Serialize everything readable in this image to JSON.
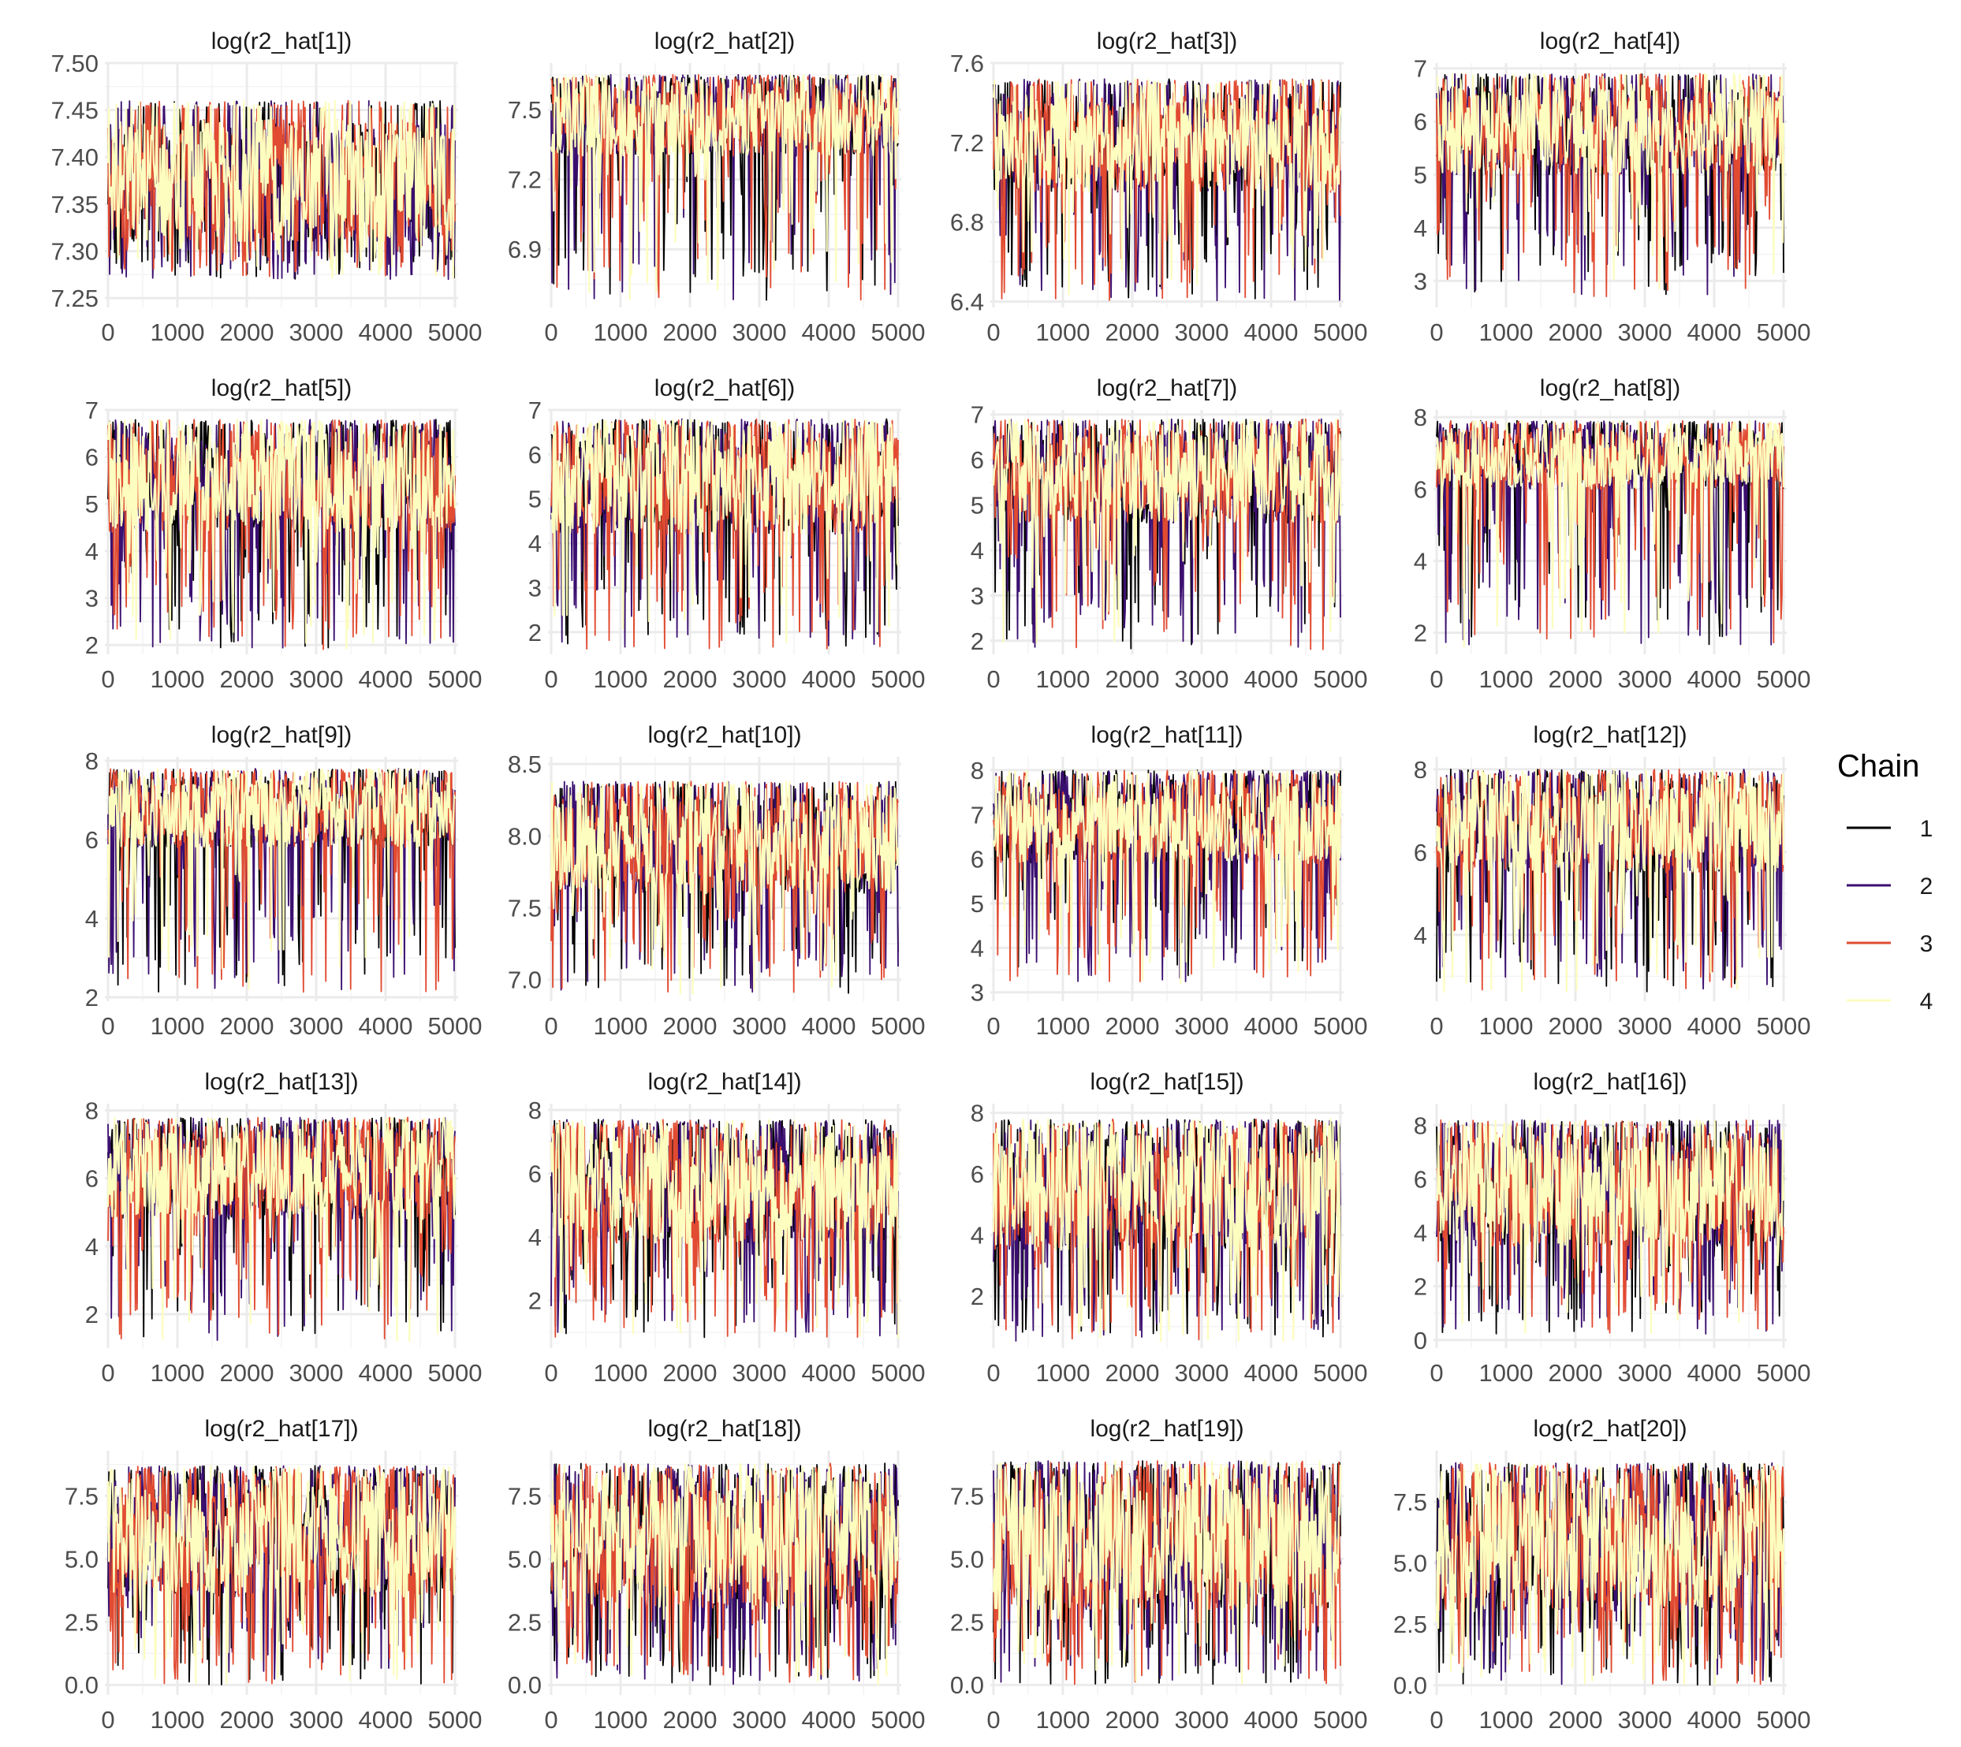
{
  "chart_data": {
    "type": "line",
    "grid": true,
    "legend": {
      "title": "Chain",
      "placement": "right",
      "entries": [
        {
          "name": "1",
          "color": "#000000"
        },
        {
          "name": "2",
          "color": "#3b0f70"
        },
        {
          "name": "3",
          "color": "#e14b31"
        },
        {
          "name": "4",
          "color": "#fcfdbf"
        }
      ]
    },
    "x_axis": {
      "range": [
        0,
        5000
      ],
      "ticks": [
        0,
        1000,
        2000,
        3000,
        4000,
        5000
      ],
      "labels": [
        "0",
        "1000",
        "2000",
        "3000",
        "4000",
        "5000"
      ]
    },
    "panels": [
      {
        "title": "log(r2_hat[1])",
        "ylim": [
          7.24,
          7.5
        ],
        "yticks": [
          7.25,
          7.3,
          7.35,
          7.4,
          7.45,
          7.5
        ],
        "ytick_labels": [
          "7.25",
          "7.30",
          "7.35",
          "7.40",
          "7.45",
          "7.50"
        ],
        "upper": 7.46,
        "band": [
          7.31,
          7.44
        ],
        "lower": 7.27
      },
      {
        "title": "log(r2_hat[2])",
        "ylim": [
          6.65,
          7.7
        ],
        "yticks": [
          6.9,
          7.2,
          7.5
        ],
        "ytick_labels": [
          "6.9",
          "7.2",
          "7.5"
        ],
        "upper": 7.65,
        "band": [
          7.3,
          7.62
        ],
        "lower": 6.68
      },
      {
        "title": "log(r2_hat[3])",
        "ylim": [
          6.37,
          7.6
        ],
        "yticks": [
          6.4,
          6.8,
          7.2,
          7.6
        ],
        "ytick_labels": [
          "6.4",
          "6.8",
          "7.2",
          "7.6"
        ],
        "upper": 7.52,
        "band": [
          6.95,
          7.45
        ],
        "lower": 6.4
      },
      {
        "title": "log(r2_hat[4])",
        "ylim": [
          2.5,
          7.1
        ],
        "yticks": [
          3,
          4,
          5,
          6,
          7
        ],
        "ytick_labels": [
          "3",
          "4",
          "5",
          "6",
          "7"
        ],
        "upper": 6.9,
        "band": [
          5.0,
          6.7
        ],
        "lower": 2.7
      },
      {
        "title": "log(r2_hat[5])",
        "ylim": [
          1.8,
          7.0
        ],
        "yticks": [
          2,
          3,
          4,
          5,
          6,
          7
        ],
        "ytick_labels": [
          "2",
          "3",
          "4",
          "5",
          "6",
          "7"
        ],
        "upper": 6.8,
        "band": [
          4.4,
          6.6
        ],
        "lower": 1.9
      },
      {
        "title": "log(r2_hat[6])",
        "ylim": [
          1.5,
          7.0
        ],
        "yticks": [
          2,
          3,
          4,
          5,
          6,
          7
        ],
        "ytick_labels": [
          "2",
          "3",
          "4",
          "5",
          "6",
          "7"
        ],
        "upper": 6.8,
        "band": [
          4.2,
          6.6
        ],
        "lower": 1.6
      },
      {
        "title": "log(r2_hat[7])",
        "ylim": [
          1.7,
          7.1
        ],
        "yticks": [
          2,
          3,
          4,
          5,
          6,
          7
        ],
        "ytick_labels": [
          "2",
          "3",
          "4",
          "5",
          "6",
          "7"
        ],
        "upper": 6.9,
        "band": [
          4.6,
          6.7
        ],
        "lower": 1.8
      },
      {
        "title": "log(r2_hat[8])",
        "ylim": [
          1.4,
          8.2
        ],
        "yticks": [
          2,
          4,
          6,
          8
        ],
        "ytick_labels": [
          "2",
          "4",
          "6",
          "8"
        ],
        "upper": 7.9,
        "band": [
          6.0,
          7.7
        ],
        "lower": 1.6
      },
      {
        "title": "log(r2_hat[9])",
        "ylim": [
          1.9,
          8.1
        ],
        "yticks": [
          2,
          4,
          6,
          8
        ],
        "ytick_labels": [
          "2",
          "4",
          "6",
          "8"
        ],
        "upper": 7.8,
        "band": [
          5.8,
          7.6
        ],
        "lower": 2.1
      },
      {
        "title": "log(r2_hat[10])",
        "ylim": [
          6.85,
          8.55
        ],
        "yticks": [
          7.0,
          7.5,
          8.0,
          8.5
        ],
        "ytick_labels": [
          "7.0",
          "7.5",
          "8.0",
          "8.5"
        ],
        "upper": 8.38,
        "band": [
          7.6,
          8.3
        ],
        "lower": 6.9
      },
      {
        "title": "log(r2_hat[11])",
        "ylim": [
          2.8,
          8.3
        ],
        "yticks": [
          3,
          4,
          5,
          6,
          7,
          8
        ],
        "ytick_labels": [
          "3",
          "4",
          "5",
          "6",
          "7",
          "8"
        ],
        "upper": 8.0,
        "band": [
          5.9,
          7.8
        ],
        "lower": 3.2
      },
      {
        "title": "log(r2_hat[12])",
        "ylim": [
          2.4,
          8.3
        ],
        "yticks": [
          4,
          6,
          8
        ],
        "ytick_labels": [
          "4",
          "6",
          "8"
        ],
        "upper": 8.0,
        "band": [
          5.5,
          7.8
        ],
        "lower": 2.6
      },
      {
        "title": "log(r2_hat[13])",
        "ylim": [
          1.0,
          8.2
        ],
        "yticks": [
          2,
          4,
          6,
          8
        ],
        "ytick_labels": [
          "2",
          "4",
          "6",
          "8"
        ],
        "upper": 7.8,
        "band": [
          4.8,
          7.6
        ],
        "lower": 1.2
      },
      {
        "title": "log(r2_hat[14])",
        "ylim": [
          0.5,
          8.2
        ],
        "yticks": [
          2,
          4,
          6,
          8
        ],
        "ytick_labels": [
          "2",
          "4",
          "6",
          "8"
        ],
        "upper": 7.7,
        "band": [
          3.8,
          7.4
        ],
        "lower": 0.8
      },
      {
        "title": "log(r2_hat[15])",
        "ylim": [
          0.3,
          8.3
        ],
        "yticks": [
          2,
          4,
          6,
          8
        ],
        "ytick_labels": [
          "2",
          "4",
          "6",
          "8"
        ],
        "upper": 7.8,
        "band": [
          3.5,
          7.5
        ],
        "lower": 0.5
      },
      {
        "title": "log(r2_hat[16])",
        "ylim": [
          -0.3,
          8.8
        ],
        "yticks": [
          0,
          2,
          4,
          6,
          8
        ],
        "ytick_labels": [
          "0",
          "2",
          "4",
          "6",
          "8"
        ],
        "upper": 8.2,
        "band": [
          3.5,
          7.8
        ],
        "lower": 0.2
      },
      {
        "title": "log(r2_hat[17])",
        "ylim": [
          -0.4,
          9.3
        ],
        "yticks": [
          0.0,
          2.5,
          5.0,
          7.5
        ],
        "ytick_labels": [
          "0.0",
          "2.5",
          "5.0",
          "7.5"
        ],
        "upper": 8.7,
        "band": [
          3.5,
          8.3
        ],
        "lower": 0.0
      },
      {
        "title": "log(r2_hat[18])",
        "ylim": [
          -0.4,
          9.3
        ],
        "yticks": [
          0.0,
          2.5,
          5.0,
          7.5
        ],
        "ytick_labels": [
          "0.0",
          "2.5",
          "5.0",
          "7.5"
        ],
        "upper": 8.8,
        "band": [
          3.0,
          8.4
        ],
        "lower": 0.0
      },
      {
        "title": "log(r2_hat[19])",
        "ylim": [
          -0.4,
          9.3
        ],
        "yticks": [
          0.0,
          2.5,
          5.0,
          7.5
        ],
        "ytick_labels": [
          "0.0",
          "2.5",
          "5.0",
          "7.5"
        ],
        "upper": 8.9,
        "band": [
          3.0,
          8.5
        ],
        "lower": 0.0
      },
      {
        "title": "log(r2_hat[20])",
        "ylim": [
          -0.4,
          9.6
        ],
        "yticks": [
          0.0,
          2.5,
          5.0,
          7.5
        ],
        "ytick_labels": [
          "0.0",
          "2.5",
          "5.0",
          "7.5"
        ],
        "upper": 9.1,
        "band": [
          3.0,
          8.6
        ],
        "lower": 0.0
      }
    ]
  }
}
